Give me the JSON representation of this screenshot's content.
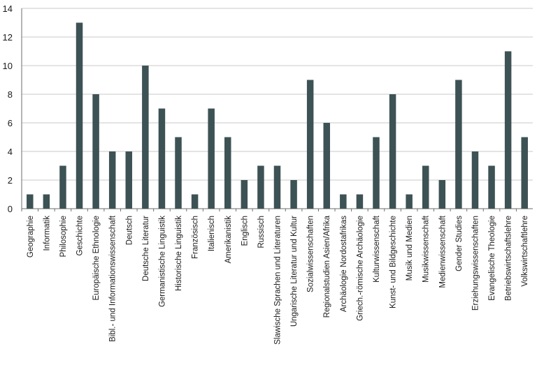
{
  "chart_data": {
    "type": "bar",
    "title": "",
    "xlabel": "",
    "ylabel": "",
    "ylim": [
      0,
      14
    ],
    "yticks": [
      0,
      2,
      4,
      6,
      8,
      10,
      12,
      14
    ],
    "grid": "horizontal",
    "bar_color": "#3d5254",
    "categories": [
      "Geographie",
      "Informatik",
      "Philosophie",
      "Geschichte",
      "Europäische Ethnologie",
      "Bibl.- und Informationswissenschaft",
      "Deutsch",
      "Deutsche Literatur",
      "Germanistische Linguistik",
      "Historische Linguistik",
      "Französisch",
      "Italienisch",
      "Amerikanistik",
      "Englisch",
      "Russisch",
      "Slawische Sprachen und Literaturen",
      "Ungarische Literatur und Kultur",
      "Sozialwissenschaften",
      "Regionalstudien Asien/Afrika",
      "Archäologie Nordostafrikas",
      "Griech.-römische Archäologie",
      "Kulturwissenschaft",
      "Kunst- und Bildgeschichte",
      "Musik und Medien",
      "Musikwissenschaft",
      "Medienwissenschaft",
      "Gender Studies",
      "Erziehungswissenschaften",
      "Evangelische Theologie",
      "Betriebswirtschaftslehre",
      "Volkswirtschaftlehre"
    ],
    "values": [
      1,
      1,
      3,
      13,
      8,
      4,
      4,
      10,
      7,
      5,
      1,
      7,
      5,
      2,
      3,
      3,
      2,
      9,
      6,
      1,
      1,
      5,
      8,
      1,
      3,
      2,
      9,
      4,
      3,
      11,
      5
    ]
  }
}
